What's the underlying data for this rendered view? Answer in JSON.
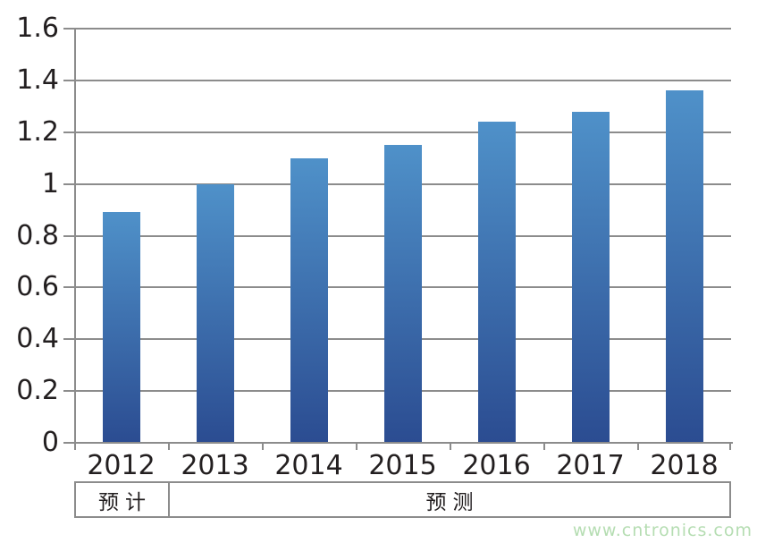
{
  "chart_data": {
    "type": "bar",
    "title": "",
    "xlabel": "",
    "ylabel": "",
    "categories": [
      "2012",
      "2013",
      "2014",
      "2015",
      "2016",
      "2017",
      "2018"
    ],
    "values": [
      0.89,
      1.0,
      1.1,
      1.15,
      1.24,
      1.28,
      1.36
    ],
    "ylim": [
      0,
      1.6
    ],
    "ytick_interval": 0.2,
    "ytick_labels": [
      "0",
      "0.2",
      "0.4",
      "0.6",
      "0.8",
      "1",
      "1.2",
      "1.4",
      "1.6"
    ],
    "grid": true,
    "legend": null,
    "bar_color_top": "#4f91c9",
    "bar_color_bottom": "#2b4c91"
  },
  "annotation_row": {
    "cells": [
      {
        "label": "预计",
        "span_categories": 1
      },
      {
        "label": "预测",
        "span_categories": 6
      }
    ]
  },
  "watermark": {
    "text": "www.cntronics.com",
    "color": "#b5ddb2"
  },
  "colors": {
    "grid": "#8c8c8c",
    "axis": "#8c8c8c",
    "text": "#231f20",
    "background": "#ffffff"
  }
}
